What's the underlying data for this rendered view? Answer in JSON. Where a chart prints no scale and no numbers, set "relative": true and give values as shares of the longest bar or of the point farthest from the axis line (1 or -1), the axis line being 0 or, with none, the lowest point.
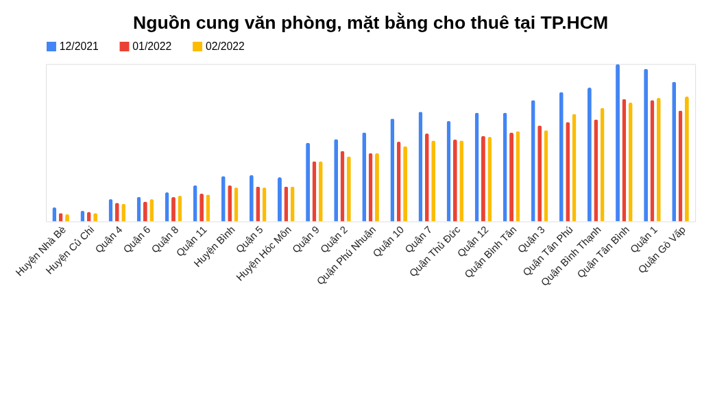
{
  "chart_data": {
    "type": "bar",
    "title": "Nguồn cung văn phòng, mặt bằng cho thuê tại TP.HCM",
    "relative": true,
    "legend": "top",
    "categories": [
      "Huyện Nhà Bè",
      "Huyện Củ Chi",
      "Quận 4",
      "Quận 6",
      "Quận 8",
      "Quận 11",
      "Huyện Bình",
      "Quận 5",
      "Huyện Hóc Môn",
      "Quận 9",
      "Quận 2",
      "Quận Phú Nhuận",
      "Quận 10",
      "Quận 7",
      "Quận Thủ Đức",
      "Quận 12",
      "Quận Bình Tân",
      "Quận 3",
      "Quận Tân Phú",
      "Quận Bình Thạnh",
      "Quận Tân Bình",
      "Quận 1",
      "Quận Gò Vấp"
    ],
    "series": [
      {
        "name": "12/2021",
        "color": "#4285f4",
        "values": [
          0.089,
          0.067,
          0.141,
          0.156,
          0.185,
          0.229,
          0.288,
          0.295,
          0.281,
          0.5,
          0.523,
          0.566,
          0.654,
          0.697,
          0.639,
          0.691,
          0.691,
          0.771,
          0.822,
          0.851,
          1,
          0.97,
          0.888
        ]
      },
      {
        "name": "01/2022",
        "color": "#ea4335",
        "values": [
          0.053,
          0.06,
          0.119,
          0.126,
          0.156,
          0.177,
          0.229,
          0.222,
          0.222,
          0.382,
          0.448,
          0.434,
          0.507,
          0.559,
          0.521,
          0.544,
          0.566,
          0.61,
          0.632,
          0.648,
          0.778,
          0.771,
          0.705
        ]
      },
      {
        "name": "02/2022",
        "color": "#fbbc04",
        "values": [
          0.046,
          0.053,
          0.112,
          0.141,
          0.163,
          0.171,
          0.215,
          0.215,
          0.222,
          0.382,
          0.413,
          0.434,
          0.478,
          0.514,
          0.514,
          0.537,
          0.573,
          0.58,
          0.683,
          0.721,
          0.756,
          0.785,
          0.794
        ]
      }
    ]
  }
}
